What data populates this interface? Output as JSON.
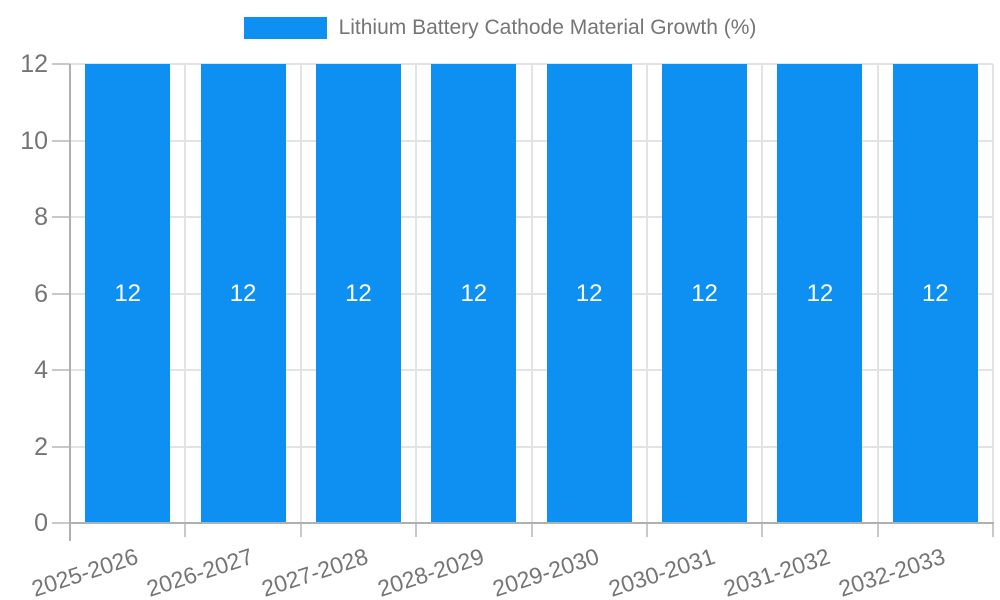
{
  "chart_data": {
    "type": "bar",
    "title": "Lithium Battery Cathode Material Growth (%)",
    "categories": [
      "2025-2026",
      "2026-2027",
      "2027-2028",
      "2028-2029",
      "2029-2030",
      "2030-2031",
      "2031-2032",
      "2032-2033"
    ],
    "series": [
      {
        "name": "Lithium Battery Cathode Material Growth (%)",
        "values": [
          12,
          12,
          12,
          12,
          12,
          12,
          12,
          12
        ]
      }
    ],
    "bar_value_labels": [
      "12",
      "12",
      "12",
      "12",
      "12",
      "12",
      "12",
      "12"
    ],
    "xlabel": "",
    "ylabel": "",
    "ylim": [
      0,
      12
    ],
    "yticks": [
      0,
      2,
      4,
      6,
      8,
      10,
      12
    ],
    "grid": true,
    "legend_position": "top-center",
    "colors": {
      "bar": "#0e90f2",
      "bar_label": "#ffffff",
      "grid": "#e3e3e3",
      "axis": "#b0b0b0",
      "tick": "#c9c9c9",
      "axis_text": "#757575",
      "legend_text": "#757575",
      "background": "#ffffff"
    }
  }
}
